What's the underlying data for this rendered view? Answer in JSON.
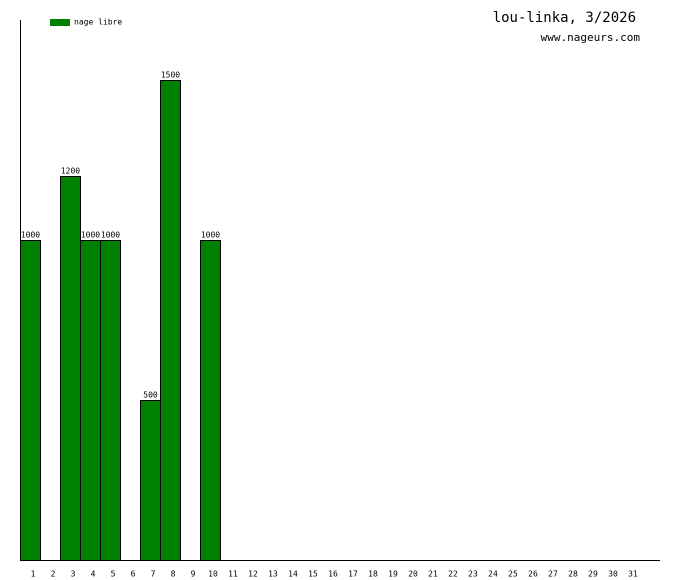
{
  "chart_data": {
    "type": "bar",
    "title": "lou-linka, 3/2026",
    "subtitle": "www.nageurs.com",
    "categories": [
      "1",
      "2",
      "3",
      "4",
      "5",
      "6",
      "7",
      "8",
      "9",
      "10",
      "11",
      "12",
      "13",
      "14",
      "15",
      "16",
      "17",
      "18",
      "19",
      "20",
      "21",
      "22",
      "23",
      "24",
      "25",
      "26",
      "27",
      "28",
      "29",
      "30",
      "31"
    ],
    "series": [
      {
        "name": "nage libre",
        "color": "#008000",
        "values": [
          1000,
          null,
          1200,
          1000,
          1000,
          null,
          500,
          1500,
          null,
          1000,
          null,
          null,
          null,
          null,
          null,
          null,
          null,
          null,
          null,
          null,
          null,
          null,
          null,
          null,
          null,
          null,
          null,
          null,
          null,
          null,
          null
        ]
      }
    ],
    "ylim": [
      0,
      1687.5
    ],
    "legend": "top-left"
  }
}
